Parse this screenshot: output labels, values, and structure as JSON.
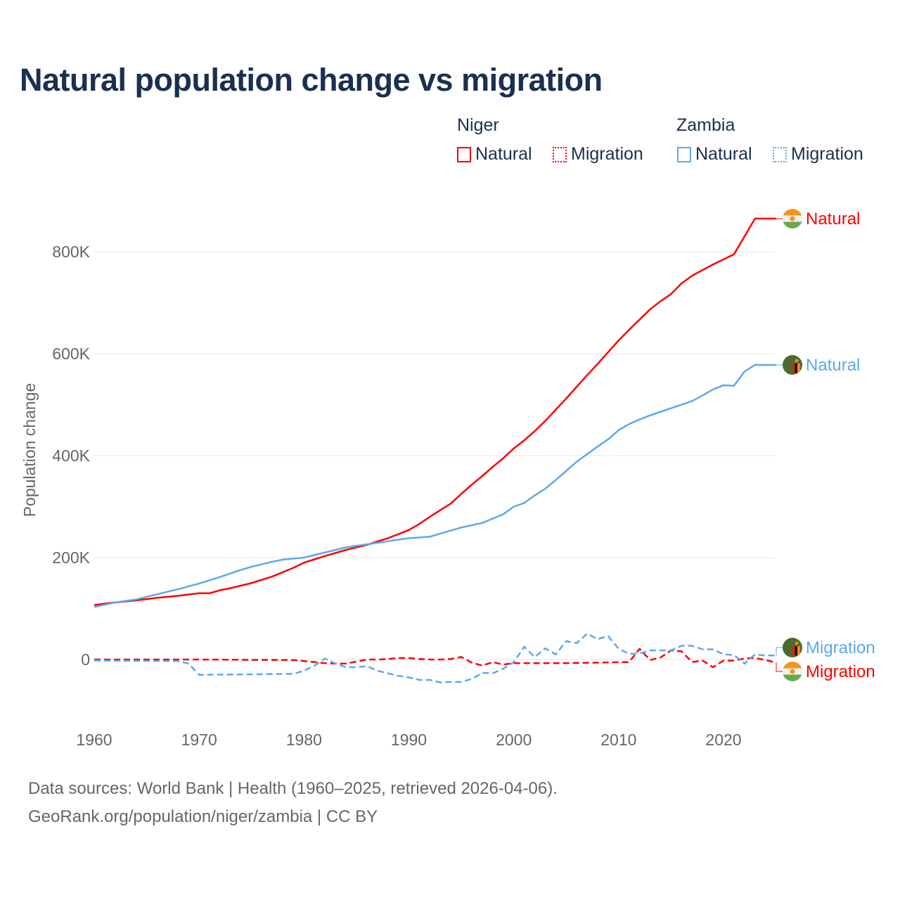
{
  "title": "Natural population change vs migration",
  "legend": {
    "groups": [
      {
        "name": "Niger",
        "items": [
          {
            "label": "Natural",
            "style": "solid"
          },
          {
            "label": "Migration",
            "style": "dotted"
          }
        ],
        "color": "#ff0000"
      },
      {
        "name": "Zambia",
        "items": [
          {
            "label": "Natural",
            "style": "solid"
          },
          {
            "label": "Migration",
            "style": "dotted"
          }
        ],
        "color": "#5ea8ec"
      }
    ]
  },
  "footer": {
    "line1": "Data sources: World Bank | Health (1960–2025, retrieved 2026-04-06).",
    "line2": "GeoRank.org/population/niger/zambia | CC BY"
  },
  "chart_data": {
    "type": "line",
    "title": "Natural population change vs migration",
    "xlabel": "",
    "ylabel": "Population change",
    "xlim": [
      1960,
      2025
    ],
    "ylim": [
      -130,
      900
    ],
    "xticks": [
      1960,
      1970,
      1980,
      1990,
      2000,
      2010,
      2020
    ],
    "xtick_labels": [
      "1960",
      "1970",
      "1980",
      "1990",
      "2000",
      "2010",
      "2020"
    ],
    "yticks": [
      0,
      200,
      400,
      600,
      800
    ],
    "ytick_labels": [
      "0",
      "200K",
      "400K",
      "600K",
      "800K"
    ],
    "units": "thousands",
    "grid": true,
    "series": [
      {
        "name": "Niger Natural",
        "label": "Natural",
        "country": "Niger",
        "color": "#ff0000",
        "dash": false,
        "x": [
          1960,
          1962,
          1964,
          1966,
          1968,
          1970,
          1971,
          1972,
          1973,
          1975,
          1977,
          1979,
          1980,
          1982,
          1984,
          1986,
          1988,
          1989,
          1990,
          1991,
          1992,
          1993,
          1994,
          1995,
          1996,
          1997,
          1998,
          1999,
          2000,
          2001,
          2002,
          2003,
          2004,
          2005,
          2006,
          2007,
          2008,
          2009,
          2010,
          2011,
          2012,
          2013,
          2014,
          2015,
          2016,
          2017,
          2018,
          2019,
          2020,
          2021,
          2022,
          2023,
          2024,
          2025
        ],
        "values": [
          107,
          112,
          116,
          121,
          125,
          130,
          130,
          136,
          140,
          150,
          163,
          180,
          190,
          203,
          215,
          225,
          238,
          246,
          254,
          266,
          280,
          293,
          306,
          325,
          343,
          360,
          378,
          395,
          414,
          430,
          448,
          468,
          490,
          512,
          535,
          558,
          580,
          603,
          626,
          647,
          667,
          687,
          703,
          717,
          738,
          753,
          764,
          775,
          785,
          795,
          830,
          865,
          865,
          865
        ]
      },
      {
        "name": "Zambia Natural",
        "label": "Natural",
        "country": "Zambia",
        "color": "#5ea8ec",
        "dash": false,
        "x": [
          1960,
          1962,
          1964,
          1966,
          1968,
          1970,
          1972,
          1974,
          1975,
          1977,
          1978,
          1980,
          1982,
          1984,
          1986,
          1988,
          1990,
          1992,
          1994,
          1995,
          1997,
          1999,
          2000,
          2001,
          2002,
          2003,
          2004,
          2005,
          2006,
          2007,
          2008,
          2009,
          2010,
          2011,
          2012,
          2013,
          2014,
          2015,
          2016,
          2017,
          2018,
          2019,
          2020,
          2021,
          2022,
          2023,
          2024,
          2025
        ],
        "values": [
          103,
          112,
          118,
          128,
          138,
          149,
          162,
          176,
          182,
          192,
          196,
          200,
          210,
          220,
          226,
          232,
          238,
          241,
          253,
          259,
          268,
          285,
          300,
          307,
          322,
          335,
          352,
          370,
          388,
          403,
          418,
          432,
          450,
          462,
          471,
          479,
          486,
          493,
          500,
          507,
          518,
          530,
          538,
          537,
          565,
          578,
          578,
          578
        ]
      },
      {
        "name": "Niger Migration",
        "label": "Migration",
        "country": "Niger",
        "color": "#ff0000",
        "dash": true,
        "x": [
          1960,
          1970,
          1979,
          1980,
          1981,
          1982,
          1983,
          1984,
          1985,
          1986,
          1987,
          1988,
          1989,
          1990,
          1991,
          1992,
          1993,
          1994,
          1995,
          1996,
          1997,
          1998,
          1999,
          2000,
          2005,
          2011,
          2012,
          2013,
          2014,
          2015,
          2016,
          2017,
          2018,
          2019,
          2020,
          2021,
          2022,
          2023,
          2024,
          2025
        ],
        "values": [
          0,
          0,
          -1,
          -3,
          -5,
          -7,
          -8,
          -8,
          -4,
          0,
          0,
          1,
          3,
          3,
          1,
          0,
          0,
          1,
          5,
          -6,
          -12,
          -5,
          -10,
          -7,
          -7,
          -5,
          21,
          -1,
          4,
          18,
          16,
          -5,
          -2,
          -15,
          -2,
          -2,
          2,
          3,
          -1,
          -6
        ]
      },
      {
        "name": "Zambia Migration",
        "label": "Migration",
        "country": "Zambia",
        "color": "#5ea8ec",
        "dash": true,
        "x": [
          1960,
          1968,
          1969,
          1970,
          1975,
          1979,
          1980,
          1981,
          1982,
          1983,
          1984,
          1985,
          1986,
          1987,
          1988,
          1989,
          1990,
          1991,
          1992,
          1993,
          1994,
          1995,
          1996,
          1997,
          1998,
          1999,
          2000,
          2001,
          2002,
          2003,
          2004,
          2005,
          2006,
          2007,
          2008,
          2009,
          2010,
          2011,
          2012,
          2013,
          2014,
          2015,
          2016,
          2017,
          2018,
          2019,
          2020,
          2021,
          2022,
          2023,
          2024,
          2025
        ],
        "values": [
          -2,
          -3,
          -8,
          -30,
          -29,
          -28,
          -22,
          -12,
          2,
          -8,
          -15,
          -15,
          -13,
          -22,
          -27,
          -32,
          -35,
          -40,
          -40,
          -45,
          -44,
          -44,
          -38,
          -26,
          -27,
          -18,
          -5,
          25,
          5,
          22,
          10,
          36,
          32,
          51,
          40,
          46,
          21,
          11,
          12,
          18,
          18,
          18,
          27,
          27,
          20,
          20,
          10,
          9,
          -8,
          10,
          8,
          8
        ]
      }
    ]
  }
}
